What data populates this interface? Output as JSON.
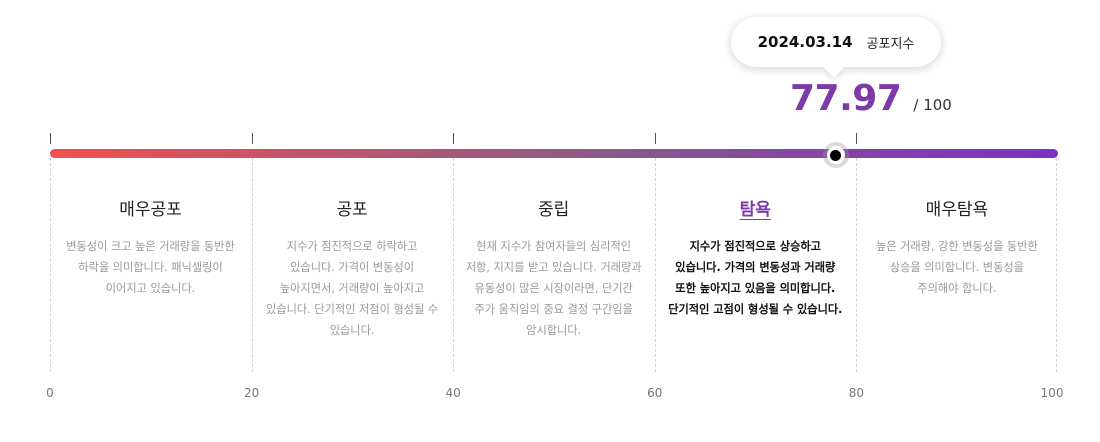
{
  "tooltip": {
    "date": "2024.03.14",
    "label": "공포지수"
  },
  "index": {
    "value": "77.97",
    "max": "/ 100",
    "score": 77.97
  },
  "colors": {
    "gradient_start": "#f0504e",
    "gradient_mid": "#8a5a8a",
    "gradient_end": "#7b32c2",
    "accent": "#7b3aa8"
  },
  "zones": [
    {
      "title": "매우공포",
      "desc": "변동성이 크고 높은 거래량을 동반한 하락을 의미합니다. 패닉셀링이 이어지고 있습니다."
    },
    {
      "title": "공포",
      "desc": "지수가 점진적으로 하락하고 있습니다. 가격이 변동성이 높아지면서, 거래량이 높아지고 있습니다. 단기적인 저점이 형성될 수 있습니다."
    },
    {
      "title": "중립",
      "desc": "현재 지수가 참여자들의 심리적인 저항, 지지를 받고 있습니다. 거래량과 유동성이 많은 시장이라면, 단기간 주가 움직임의 중요 결정 구간임을 암시합니다."
    },
    {
      "title": "탐욕",
      "desc": "지수가 점진적으로 상승하고 있습니다. 가격의 변동성과 거래량 또한 높아지고 있음을 의미합니다. 단기적인 고점이 형성될 수 있습니다."
    },
    {
      "title": "매우탐욕",
      "desc": "높은 거래량, 강한 변동성을 동반한 상승을 의미합니다. 변동성을 주의해야 합니다."
    }
  ],
  "active_zone": 3,
  "axis": [
    "0",
    "20",
    "40",
    "60",
    "80",
    "100"
  ]
}
